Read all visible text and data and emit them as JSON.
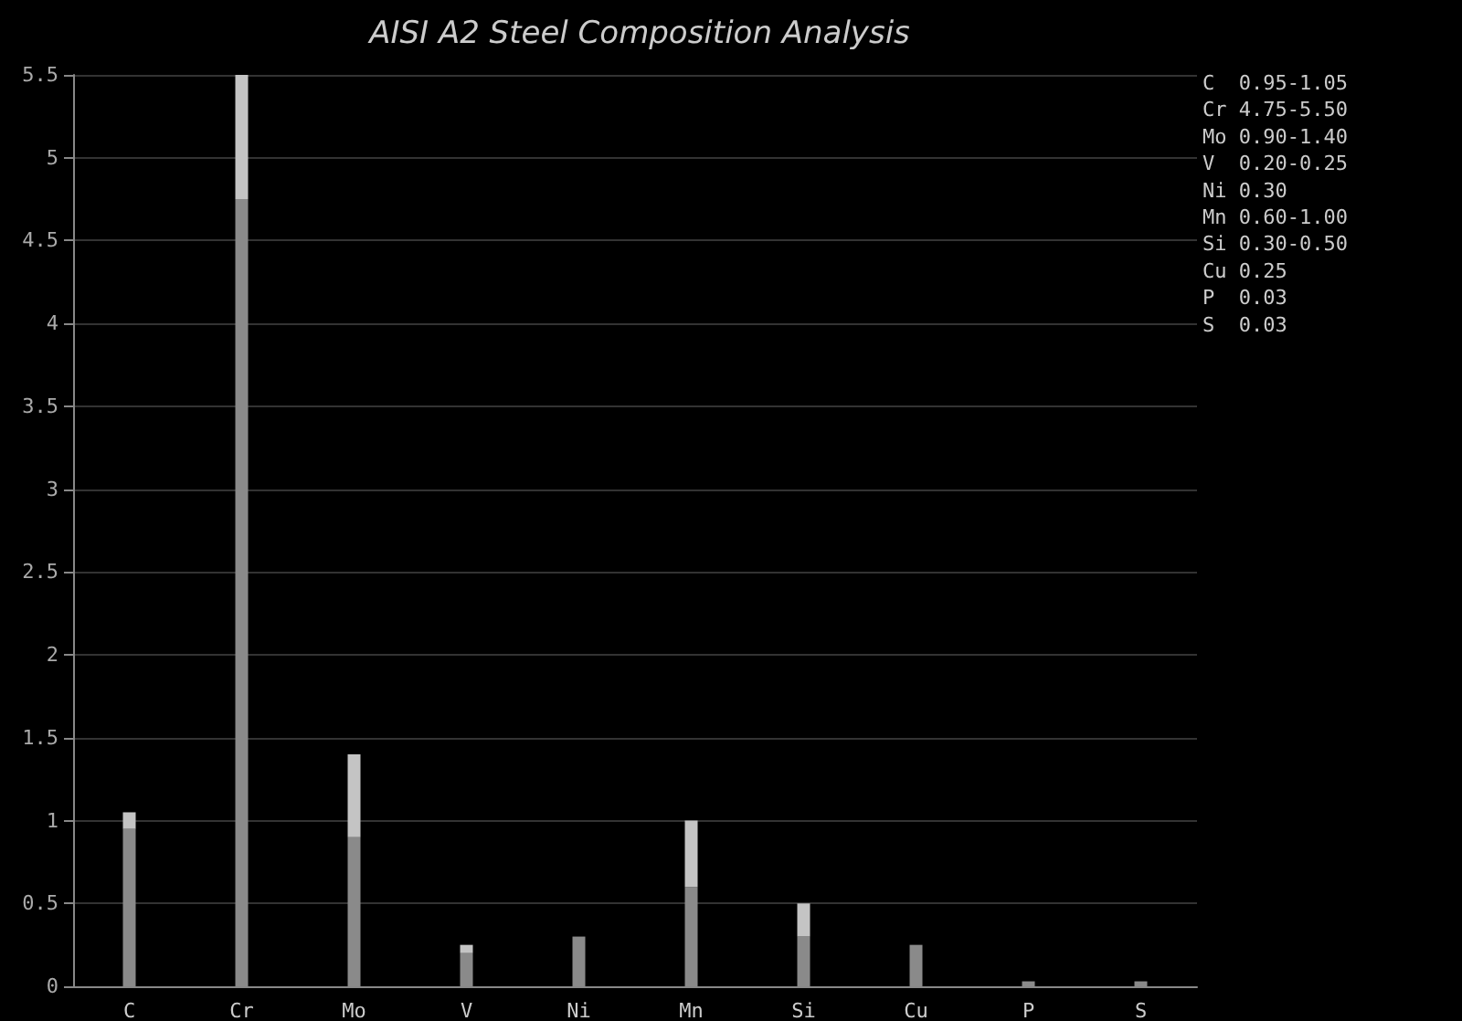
{
  "chart_data": {
    "type": "bar",
    "title": "AISI A2 Steel Composition Analysis",
    "stacked": true,
    "categories": [
      "C",
      "Cr",
      "Mo",
      "V",
      "Ni",
      "Mn",
      "Si",
      "Cu",
      "P",
      "S"
    ],
    "series": [
      {
        "color": "#8a8a8a",
        "values": [
          0.95,
          4.75,
          0.9,
          0.2,
          0.3,
          0.6,
          0.3,
          0.25,
          0.03,
          0.03
        ]
      },
      {
        "color": "#c4c4c4",
        "values": [
          0.1,
          0.75,
          0.5,
          0.05,
          null,
          0.4,
          0.2,
          null,
          null,
          null
        ]
      }
    ],
    "ylim": [
      0,
      5.5
    ],
    "yticks": [
      0,
      0.5,
      1,
      1.5,
      2,
      2.5,
      3,
      3.5,
      4,
      4.5,
      5,
      5.5
    ],
    "grid": "y",
    "annotations": [
      "C  0.95-1.05",
      "Cr 4.75-5.50",
      "Mo 0.90-1.40",
      "V  0.20-0.25",
      "Ni 0.30",
      "Mn 0.60-1.00",
      "Si 0.30-0.50",
      "Cu 0.25",
      "P  0.03",
      "S  0.03"
    ]
  }
}
